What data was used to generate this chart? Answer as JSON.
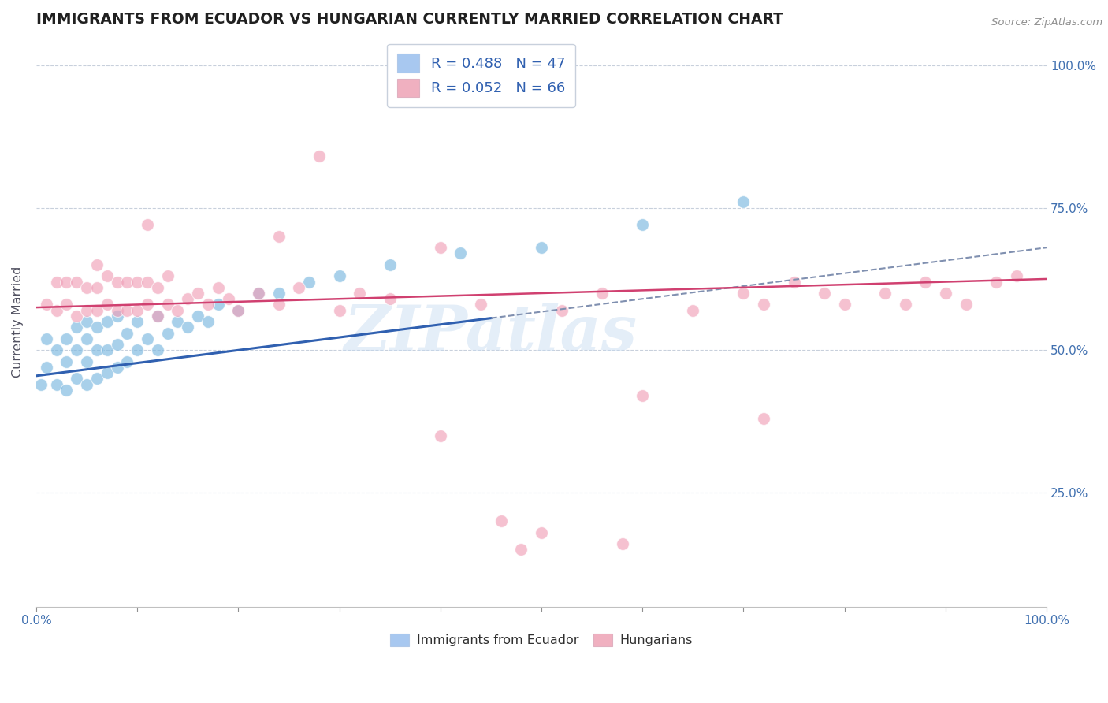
{
  "title": "IMMIGRANTS FROM ECUADOR VS HUNGARIAN CURRENTLY MARRIED CORRELATION CHART",
  "source_text": "Source: ZipAtlas.com",
  "ylabel": "Currently Married",
  "watermark": "ZIPatlas",
  "blue_color": "#7ab8e0",
  "blue_edge_color": "#5090c0",
  "pink_color": "#f0a0b8",
  "pink_edge_color": "#d07090",
  "blue_line_color": "#3060b0",
  "pink_line_color": "#d04070",
  "dashed_line_color": "#8090b0",
  "grid_color": "#c8d0dc",
  "background_color": "#ffffff",
  "title_color": "#202020",
  "title_fontsize": 13.5,
  "axis_label_color": "#505060",
  "tick_color": "#4070b0",
  "legend_blue_color": "#a8c8f0",
  "legend_pink_color": "#f0b0c0",
  "blue_x": [
    0.005,
    0.01,
    0.01,
    0.02,
    0.02,
    0.03,
    0.03,
    0.03,
    0.04,
    0.04,
    0.04,
    0.05,
    0.05,
    0.05,
    0.05,
    0.06,
    0.06,
    0.06,
    0.07,
    0.07,
    0.07,
    0.08,
    0.08,
    0.08,
    0.09,
    0.09,
    0.1,
    0.1,
    0.11,
    0.12,
    0.12,
    0.13,
    0.14,
    0.15,
    0.16,
    0.17,
    0.18,
    0.2,
    0.22,
    0.24,
    0.27,
    0.3,
    0.35,
    0.42,
    0.5,
    0.6,
    0.7
  ],
  "blue_y": [
    0.44,
    0.47,
    0.52,
    0.44,
    0.5,
    0.43,
    0.48,
    0.52,
    0.45,
    0.5,
    0.54,
    0.44,
    0.48,
    0.52,
    0.55,
    0.45,
    0.5,
    0.54,
    0.46,
    0.5,
    0.55,
    0.47,
    0.51,
    0.56,
    0.48,
    0.53,
    0.5,
    0.55,
    0.52,
    0.5,
    0.56,
    0.53,
    0.55,
    0.54,
    0.56,
    0.55,
    0.58,
    0.57,
    0.6,
    0.6,
    0.62,
    0.63,
    0.65,
    0.67,
    0.68,
    0.72,
    0.76
  ],
  "pink_x": [
    0.01,
    0.02,
    0.02,
    0.03,
    0.03,
    0.04,
    0.04,
    0.05,
    0.05,
    0.06,
    0.06,
    0.06,
    0.07,
    0.07,
    0.08,
    0.08,
    0.09,
    0.09,
    0.1,
    0.1,
    0.11,
    0.11,
    0.12,
    0.12,
    0.13,
    0.13,
    0.14,
    0.15,
    0.16,
    0.17,
    0.18,
    0.19,
    0.2,
    0.22,
    0.24,
    0.26,
    0.28,
    0.3,
    0.32,
    0.35,
    0.4,
    0.44,
    0.46,
    0.5,
    0.52,
    0.56,
    0.6,
    0.65,
    0.7,
    0.72,
    0.75,
    0.78,
    0.8,
    0.84,
    0.86,
    0.88,
    0.9,
    0.92,
    0.95,
    0.97,
    0.11,
    0.24,
    0.4,
    0.48,
    0.58,
    0.72
  ],
  "pink_y": [
    0.58,
    0.57,
    0.62,
    0.58,
    0.62,
    0.56,
    0.62,
    0.57,
    0.61,
    0.57,
    0.61,
    0.65,
    0.58,
    0.63,
    0.57,
    0.62,
    0.57,
    0.62,
    0.57,
    0.62,
    0.58,
    0.62,
    0.56,
    0.61,
    0.58,
    0.63,
    0.57,
    0.59,
    0.6,
    0.58,
    0.61,
    0.59,
    0.57,
    0.6,
    0.58,
    0.61,
    0.84,
    0.57,
    0.6,
    0.59,
    0.35,
    0.58,
    0.2,
    0.18,
    0.57,
    0.6,
    0.42,
    0.57,
    0.6,
    0.58,
    0.62,
    0.6,
    0.58,
    0.6,
    0.58,
    0.62,
    0.6,
    0.58,
    0.62,
    0.63,
    0.72,
    0.7,
    0.68,
    0.15,
    0.16,
    0.38
  ],
  "blue_trend": [
    0.0,
    1.0
  ],
  "blue_trend_y": [
    0.455,
    0.68
  ],
  "pink_trend": [
    0.0,
    1.0
  ],
  "pink_trend_y": [
    0.575,
    0.625
  ],
  "xlim": [
    0.0,
    1.0
  ],
  "ylim": [
    0.05,
    1.05
  ],
  "yticks": [
    0.25,
    0.5,
    0.75,
    1.0
  ],
  "ytick_labels": [
    "25.0%",
    "50.0%",
    "75.0%",
    "100.0%"
  ],
  "xticks": [
    0.0,
    0.1,
    0.2,
    0.3,
    0.4,
    0.5,
    0.6,
    0.7,
    0.8,
    0.9,
    1.0
  ],
  "xtick_labels_show": [
    "0.0%",
    "",
    "",
    "",
    "",
    "",
    "",
    "",
    "",
    "",
    "100.0%"
  ]
}
